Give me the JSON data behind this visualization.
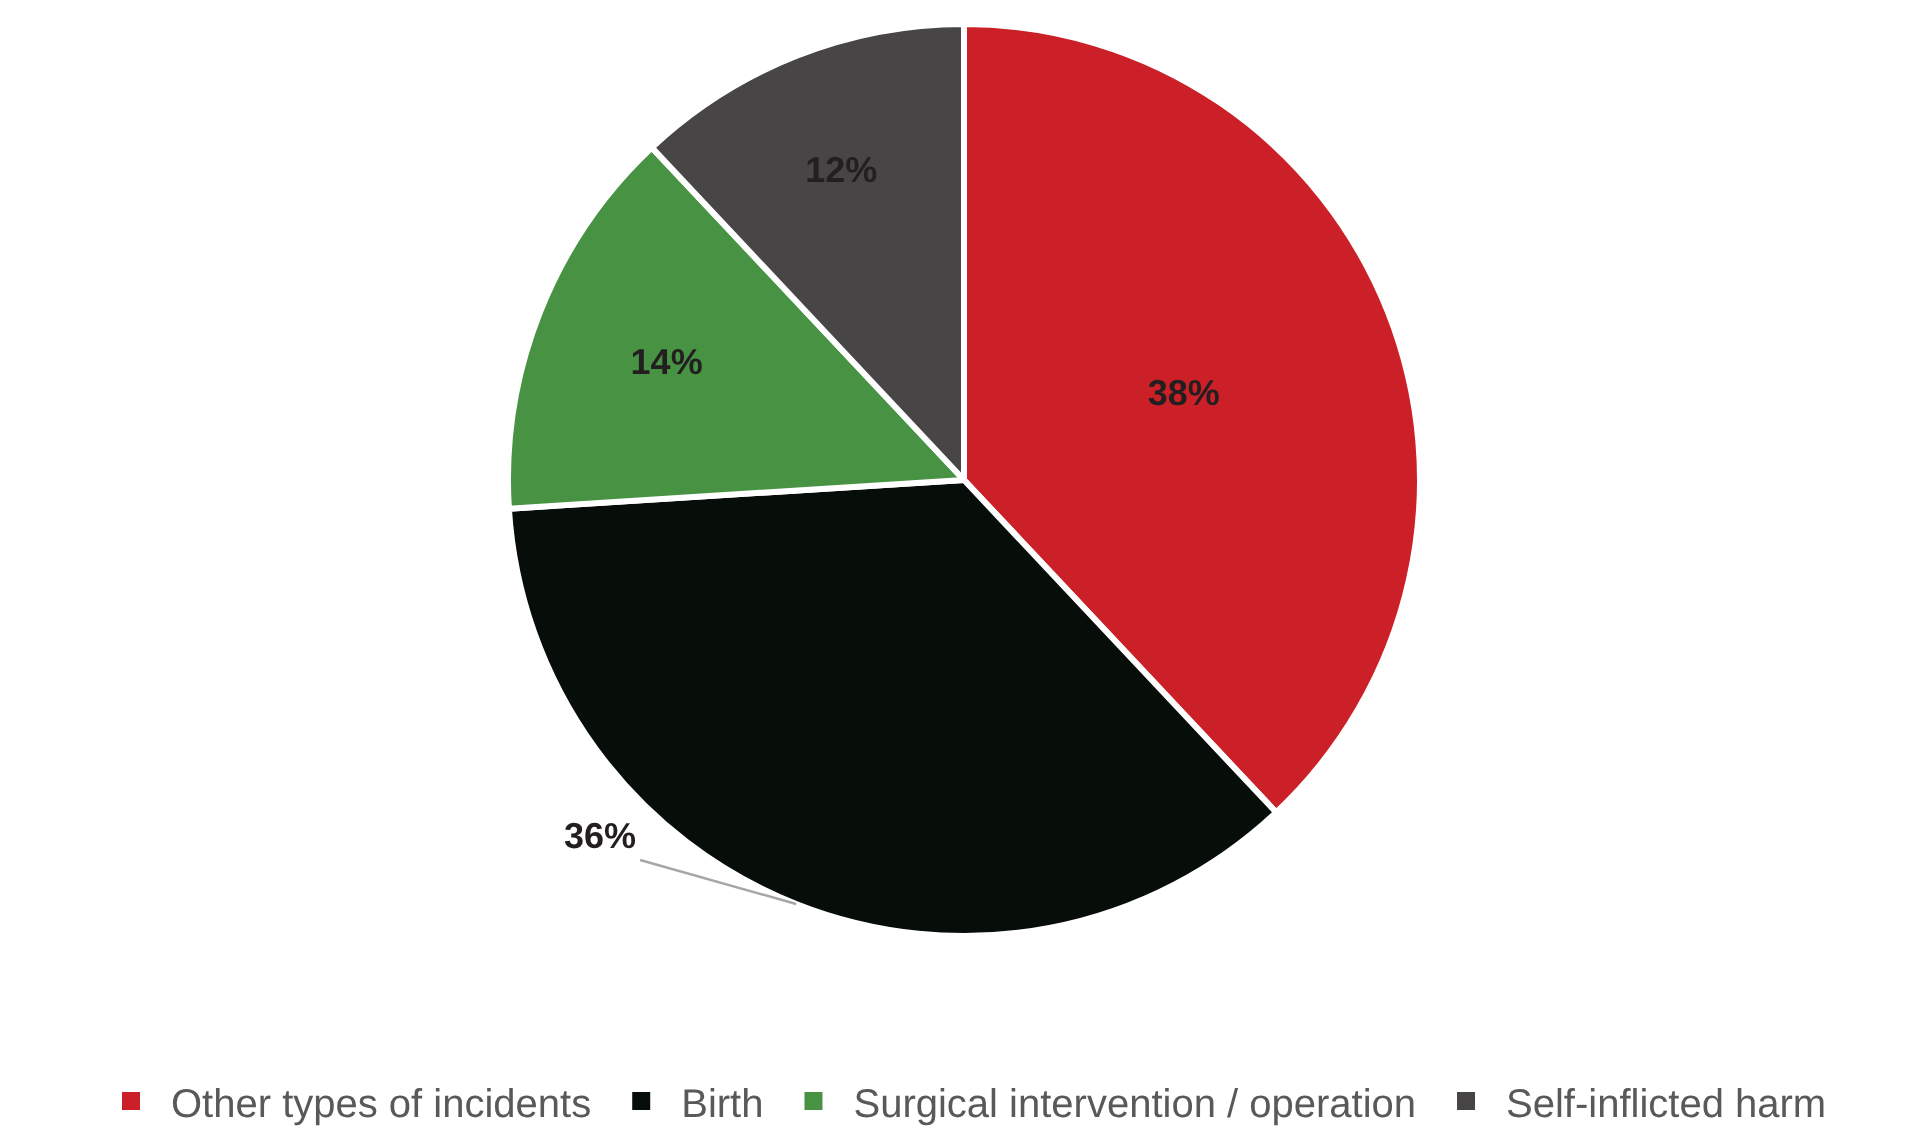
{
  "chart_data": {
    "type": "pie",
    "categories": [
      "Other types of incidents",
      "Birth",
      "Surgical intervention / operation",
      "Self-inflicted harm"
    ],
    "values": [
      38,
      36,
      14,
      12
    ],
    "colors": [
      "#cb2027",
      "#070d09",
      "#479343",
      "#474546"
    ],
    "value_labels": [
      "38%",
      "36%",
      "14%",
      "12%"
    ],
    "legend": "bottom"
  }
}
